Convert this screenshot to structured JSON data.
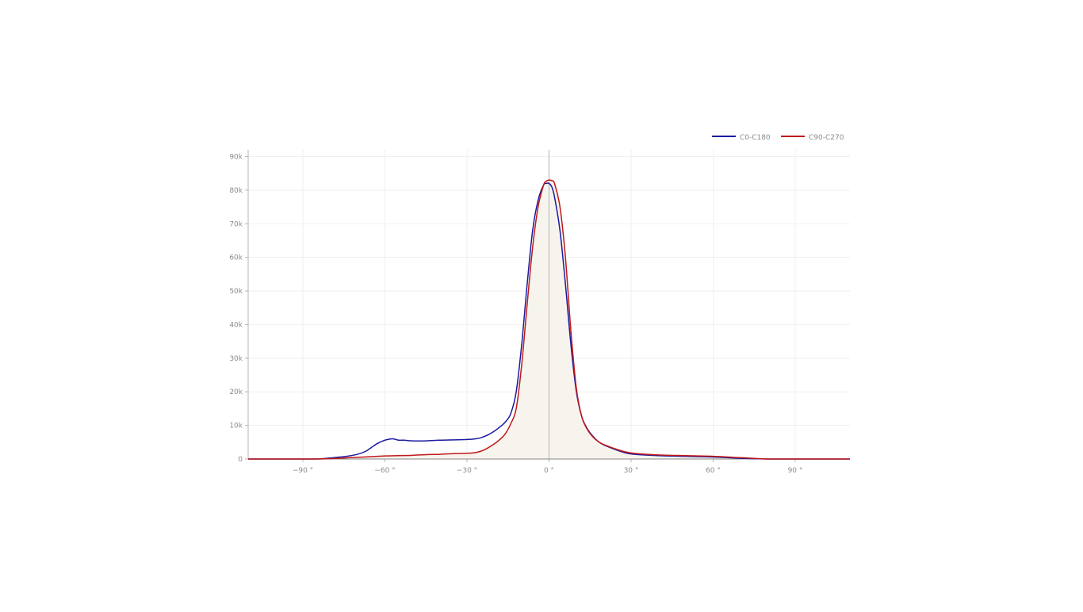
{
  "chart_data": {
    "type": "line",
    "title": "",
    "xlabel": "",
    "ylabel": "",
    "xlim": [
      -110,
      110
    ],
    "ylim": [
      0,
      92000
    ],
    "x_ticks": [
      -90,
      -60,
      -30,
      0,
      30,
      60,
      90
    ],
    "x_tick_labels": [
      "−90 °",
      "−60 °",
      "−30 °",
      "0 °",
      "30 °",
      "60 °",
      "90 °"
    ],
    "y_ticks": [
      0,
      10000,
      20000,
      30000,
      40000,
      50000,
      60000,
      70000,
      80000,
      90000
    ],
    "y_tick_labels": [
      "0",
      "10k",
      "20k",
      "30k",
      "40k",
      "50k",
      "60k",
      "70k",
      "80k",
      "90k"
    ],
    "grid": true,
    "legend_position": "top-right",
    "series": [
      {
        "name": "C0-C180",
        "color": "#1a1aa0",
        "x": [
          -110,
          -95,
          -85,
          -80,
          -75,
          -70,
          -67,
          -65,
          -63,
          -61,
          -59,
          -57,
          -55,
          -53,
          -50,
          -45,
          -40,
          -35,
          -30,
          -27,
          -25,
          -22,
          -20,
          -18,
          -16,
          -14,
          -12,
          -10,
          -8,
          -6,
          -4,
          -2,
          -1,
          0,
          1,
          2,
          4,
          6,
          8,
          10,
          12,
          14,
          16,
          18,
          20,
          25,
          30,
          40,
          50,
          60,
          70,
          80,
          90,
          110
        ],
        "values": [
          0,
          0,
          0,
          300,
          700,
          1400,
          2300,
          3400,
          4500,
          5300,
          5800,
          6000,
          5600,
          5600,
          5400,
          5400,
          5600,
          5700,
          5800,
          6000,
          6300,
          7300,
          8300,
          9500,
          11000,
          13500,
          20000,
          34000,
          52000,
          68000,
          77000,
          81500,
          82000,
          82000,
          81000,
          78000,
          68000,
          52000,
          34000,
          20000,
          12500,
          9000,
          6800,
          5200,
          4200,
          2600,
          1500,
          1000,
          800,
          600,
          200,
          0,
          0,
          0
        ]
      },
      {
        "name": "C90-C270",
        "color": "#c01818",
        "x": [
          -110,
          -95,
          -85,
          -80,
          -75,
          -70,
          -65,
          -60,
          -55,
          -50,
          -45,
          -40,
          -35,
          -30,
          -27,
          -25,
          -23,
          -20,
          -18,
          -16,
          -14,
          -12,
          -10,
          -8,
          -6,
          -4,
          -2,
          -1,
          0,
          1,
          2,
          4,
          6,
          8,
          10,
          12,
          14,
          16,
          18,
          20,
          25,
          30,
          40,
          50,
          60,
          70,
          80,
          90,
          110
        ],
        "values": [
          0,
          0,
          0,
          100,
          300,
          500,
          700,
          900,
          1000,
          1100,
          1300,
          1400,
          1600,
          1700,
          1900,
          2300,
          3000,
          4500,
          5800,
          7500,
          10500,
          15000,
          28000,
          46000,
          63000,
          75000,
          81500,
          82700,
          83000,
          82800,
          82000,
          75000,
          60000,
          38000,
          21000,
          12500,
          8800,
          6600,
          5200,
          4300,
          2800,
          1800,
          1200,
          1000,
          800,
          400,
          0,
          0,
          0
        ]
      }
    ],
    "fill_series": "C90-C270",
    "fill_color": "#f7f4ee"
  }
}
